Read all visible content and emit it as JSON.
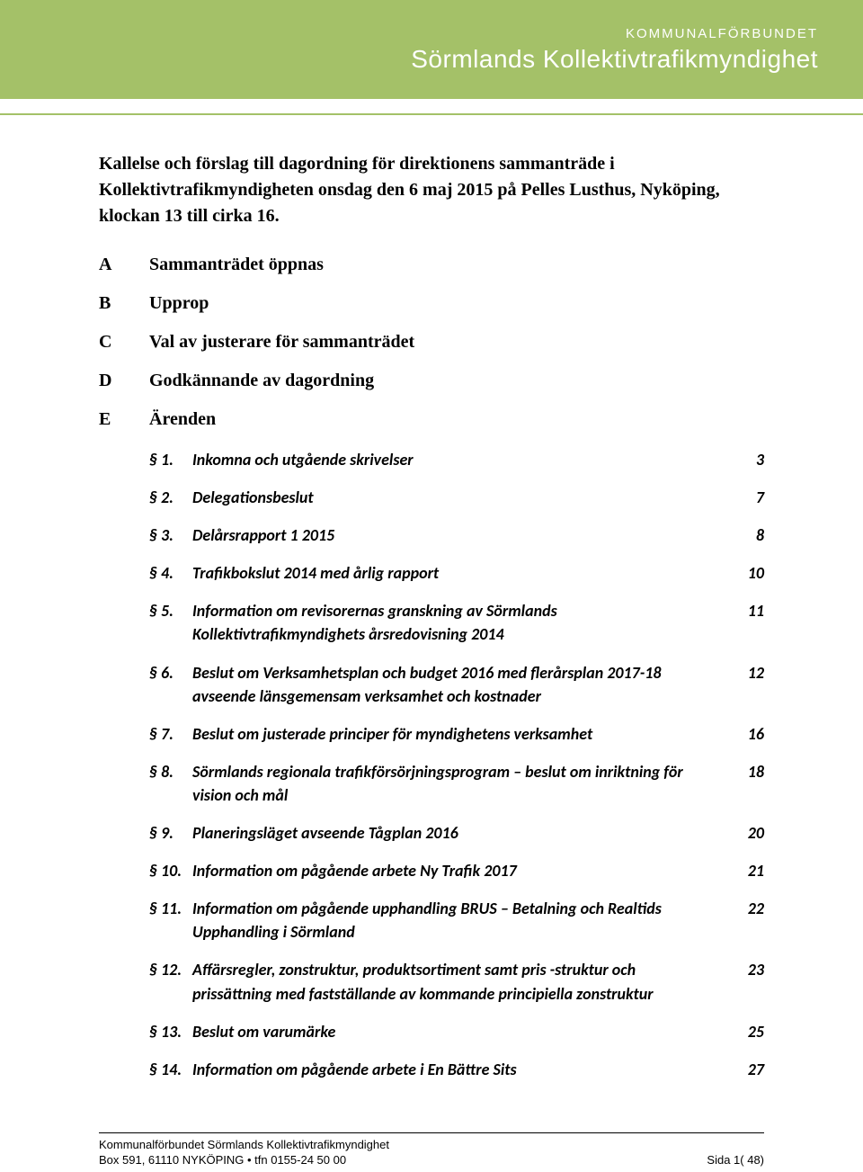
{
  "header": {
    "prefix": "KOMMUNALFÖRBUNDET",
    "name": "Sörmlands Kollektivtrafikmyndighet"
  },
  "title": "Kallelse och förslag till dagordning för direktionens sammanträde i Kollektivtrafikmyndigheten onsdag den 6 maj 2015 på Pelles Lusthus, Nyköping, klockan 13 till cirka 16.",
  "sections": [
    {
      "letter": "A",
      "label": "Sammanträdet öppnas"
    },
    {
      "letter": "B",
      "label": "Upprop"
    },
    {
      "letter": "C",
      "label": "Val av justerare för sammanträdet"
    },
    {
      "letter": "D",
      "label": "Godkännande av dagordning"
    },
    {
      "letter": "E",
      "label": "Ärenden"
    }
  ],
  "agenda": [
    {
      "num": "§ 1.",
      "text": "Inkomna och utgående skrivelser",
      "page": "3"
    },
    {
      "num": "§ 2.",
      "text": "Delegationsbeslut",
      "page": "7"
    },
    {
      "num": "§ 3.",
      "text": "Delårsrapport 1 2015",
      "page": "8"
    },
    {
      "num": "§ 4.",
      "text": "Trafikbokslut 2014 med årlig rapport",
      "page": "10"
    },
    {
      "num": "§ 5.",
      "text": "Information om revisorernas granskning av Sörmlands Kollektivtrafikmyndighets årsredovisning 2014",
      "page": "11"
    },
    {
      "num": "§ 6.",
      "text": "Beslut om Verksamhetsplan och budget 2016 med flerårsplan 2017-18 avseende länsgemensam verksamhet och kostnader",
      "page": "12"
    },
    {
      "num": "§ 7.",
      "text": "Beslut om justerade principer för myndighetens verksamhet",
      "page": "16"
    },
    {
      "num": "§ 8.",
      "text": "Sörmlands regionala trafikförsörjningsprogram – beslut om inriktning för vision och mål",
      "page": "18"
    },
    {
      "num": "§ 9.",
      "text": "Planeringsläget avseende Tågplan 2016",
      "page": "20"
    },
    {
      "num": "§ 10.",
      "text": "Information om pågående arbete Ny Trafik 2017",
      "page": "21"
    },
    {
      "num": "§ 11.",
      "text": "Information om pågående upphandling BRUS – Betalning och Realtids Upphandling i Sörmland",
      "page": "22"
    },
    {
      "num": "§ 12.",
      "text": "Affärsregler, zonstruktur, produktsortiment samt pris -struktur och prissättning med fastställande av kommande principiella zonstruktur",
      "page": "23"
    },
    {
      "num": "§ 13.",
      "text": "Beslut om varumärke",
      "page": "25"
    },
    {
      "num": "§ 14.",
      "text": "Information om pågående arbete i En Bättre Sits",
      "page": "27"
    }
  ],
  "footer": {
    "org": "Kommunalförbundet Sörmlands Kollektivtrafikmyndighet",
    "addr": "Box 591, 61110 NYKÖPING • tfn 0155-24 50 00",
    "pager": "Sida 1( 48)"
  }
}
